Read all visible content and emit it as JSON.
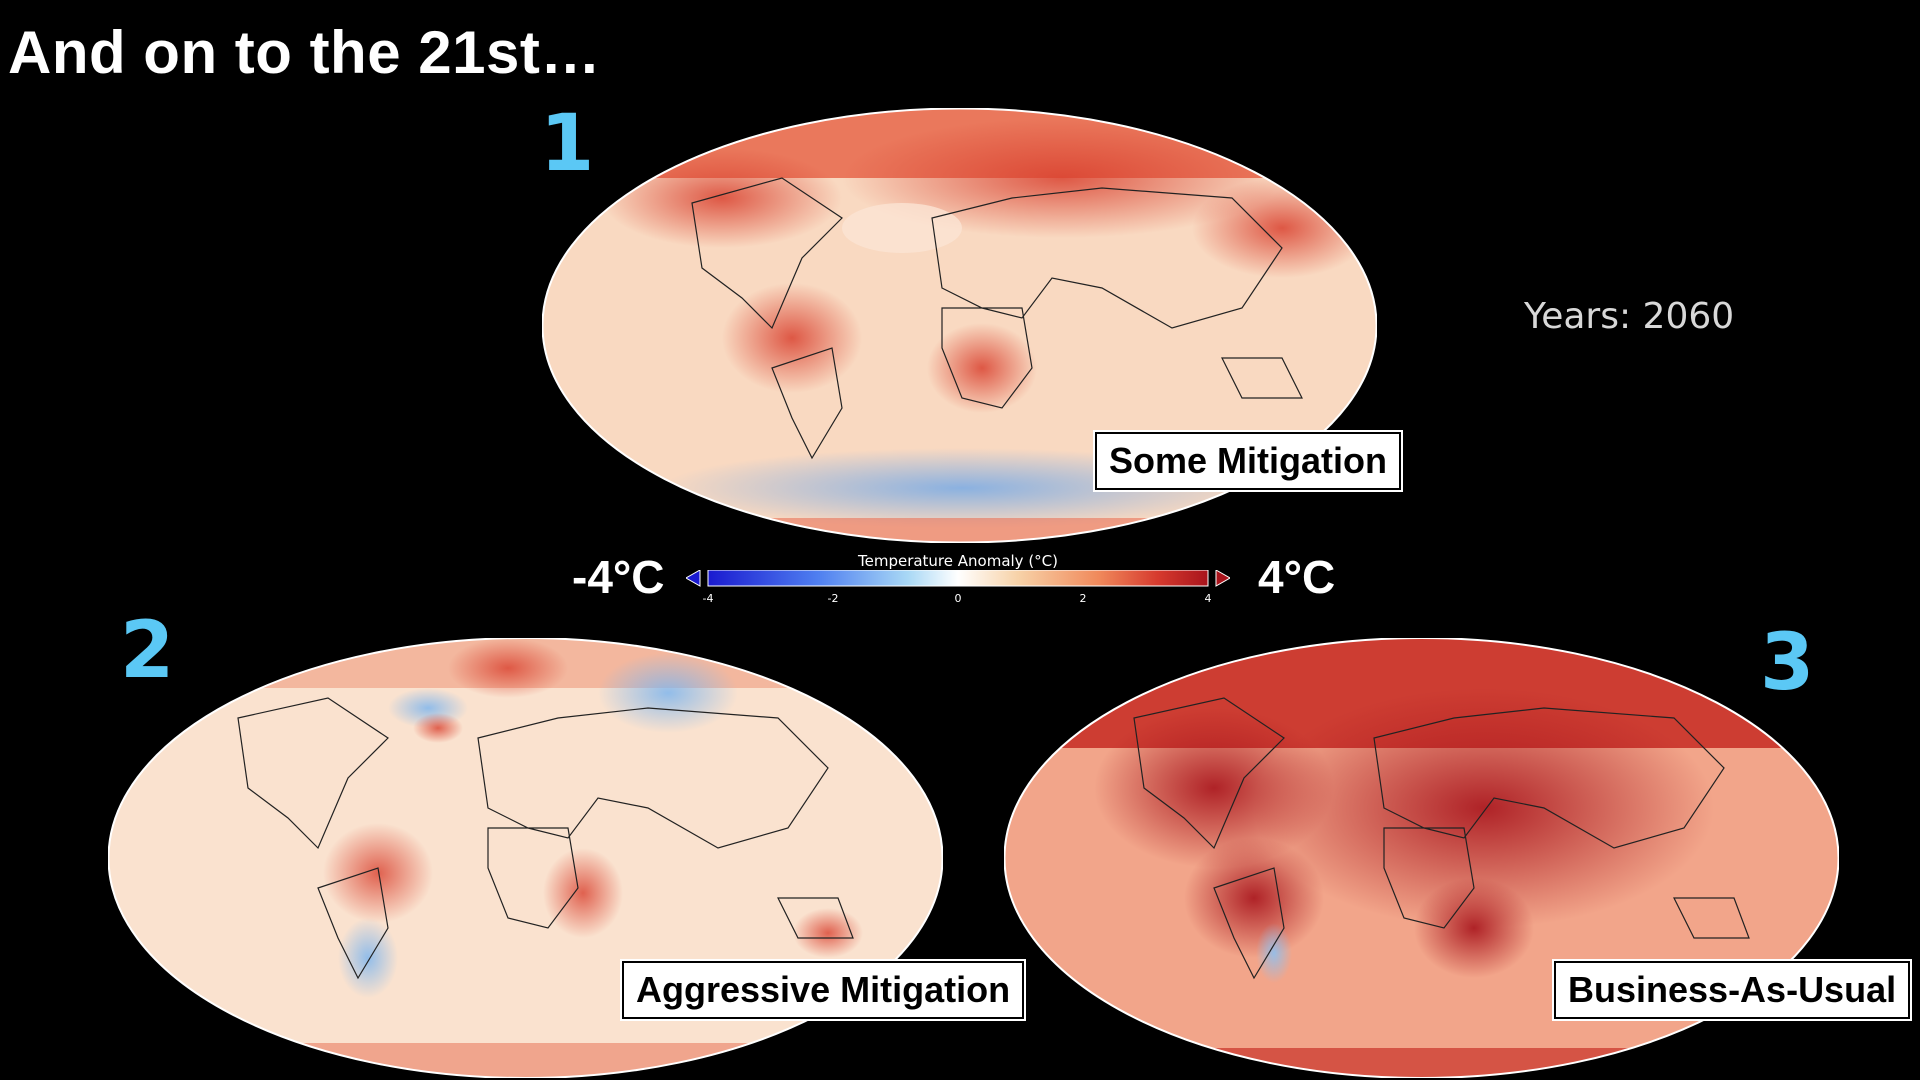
{
  "slide": {
    "title": "And on to the 21st…"
  },
  "years_label": "Years: 2060",
  "colorbar": {
    "title": "Temperature Anomaly (°C)",
    "min_label": "-4°C",
    "max_label": "4°C",
    "ticks": [
      "-4",
      "-2",
      "0",
      "2",
      "4"
    ],
    "range": [
      -4,
      4
    ],
    "colors": [
      "#1a1ad0",
      "#4f7ff0",
      "#a9d8f5",
      "#ffffff",
      "#f7d2a8",
      "#f08a5c",
      "#d63a2e",
      "#a8141c"
    ]
  },
  "maps": [
    {
      "marker": "1",
      "label": "Some Mitigation",
      "intensity": "moderate",
      "base": "#f6c6a6",
      "hot": "#e2553d",
      "cold": "#9cc8ef"
    },
    {
      "marker": "2",
      "label": "Aggressive Mitigation",
      "intensity": "low",
      "base": "#f9dcc4",
      "hot": "#e35e44",
      "cold": "#a5cff2"
    },
    {
      "marker": "3",
      "label": "Business-As-Usual",
      "intensity": "high",
      "base": "#ee9a80",
      "hot": "#b8212a",
      "cold": "#a5cff2"
    }
  ]
}
